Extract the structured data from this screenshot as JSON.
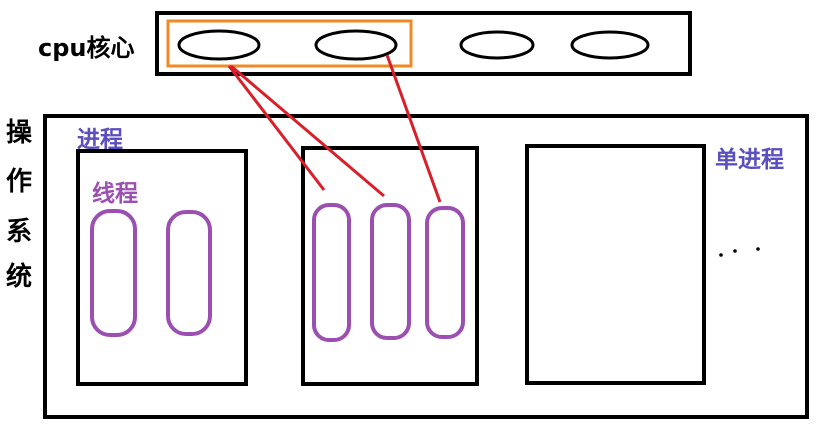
{
  "labels": {
    "cpu": "cpu核心",
    "os_chars": [
      "操",
      "作",
      "系",
      "统"
    ],
    "process": "进程",
    "thread": "线程",
    "single_process": "单进程"
  },
  "colors": {
    "black": "#000000",
    "orange": "#f08a24",
    "red": "#d81f2a",
    "process_label": "#5a4fbf",
    "thread": "#9b4fb0",
    "background": "#ffffff"
  }
}
